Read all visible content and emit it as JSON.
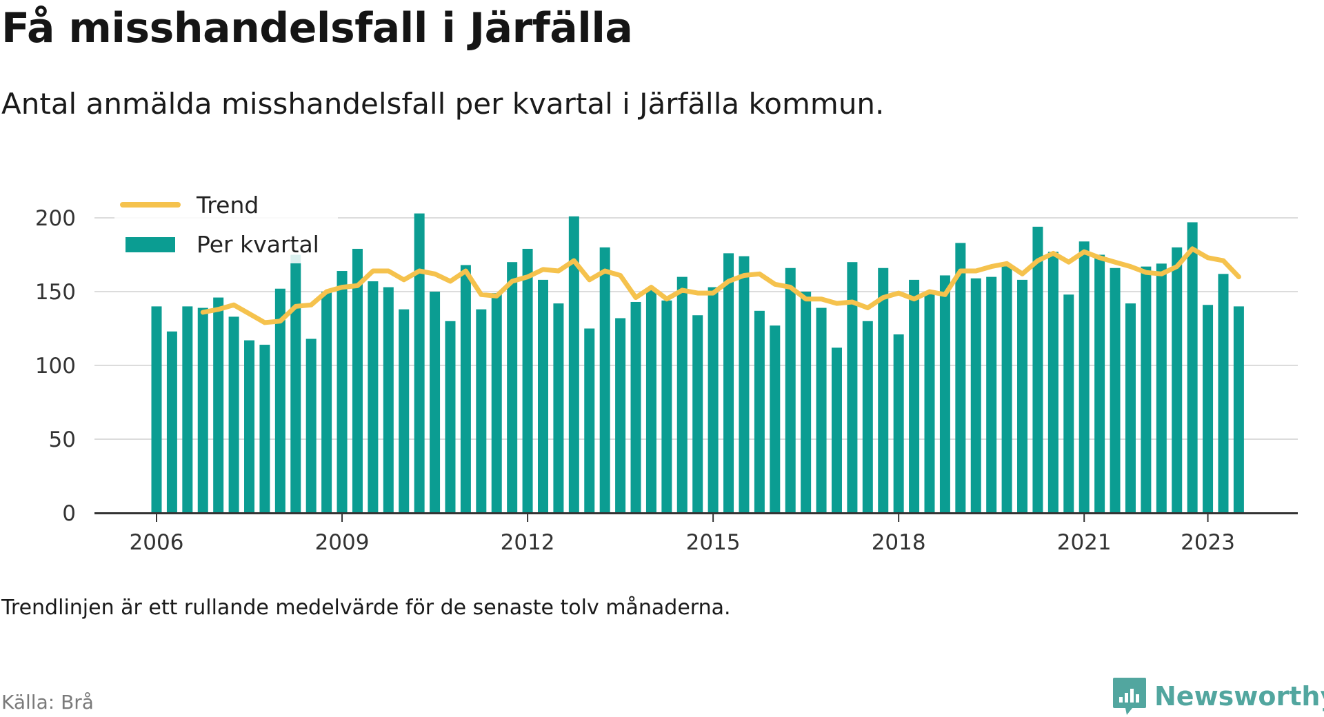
{
  "title": "Få misshandelsfall i Järfälla",
  "subtitle": "Antal anmälda misshandelsfall per kvartal i Järfälla kommun.",
  "note": "Trendlinjen är ett rullande medelvärde för de senaste tolv månaderna.",
  "source": "Källa: Brå",
  "brand": "Newsworthy",
  "colors": {
    "bars": "#0b9d92",
    "trend": "#f5c24d",
    "grid": "#dcdcdc",
    "axis": "#333333"
  },
  "chart_data": {
    "type": "bar",
    "title": "",
    "xlabel": "",
    "ylabel": "",
    "ylim": [
      0,
      200
    ],
    "yticks": [
      0,
      50,
      100,
      150,
      200
    ],
    "xticks": [
      "2006",
      "2009",
      "2012",
      "2015",
      "2018",
      "2021",
      "2023"
    ],
    "grid": true,
    "legend_position": "top-left",
    "categories": [
      "2006 Q1",
      "2006 Q2",
      "2006 Q3",
      "2006 Q4",
      "2007 Q1",
      "2007 Q2",
      "2007 Q3",
      "2007 Q4",
      "2008 Q1",
      "2008 Q2",
      "2008 Q3",
      "2008 Q4",
      "2009 Q1",
      "2009 Q2",
      "2009 Q3",
      "2009 Q4",
      "2010 Q1",
      "2010 Q2",
      "2010 Q3",
      "2010 Q4",
      "2011 Q1",
      "2011 Q2",
      "2011 Q3",
      "2011 Q4",
      "2012 Q1",
      "2012 Q2",
      "2012 Q3",
      "2012 Q4",
      "2013 Q1",
      "2013 Q2",
      "2013 Q3",
      "2013 Q4",
      "2014 Q1",
      "2014 Q2",
      "2014 Q3",
      "2014 Q4",
      "2015 Q1",
      "2015 Q2",
      "2015 Q3",
      "2015 Q4",
      "2016 Q1",
      "2016 Q2",
      "2016 Q3",
      "2016 Q4",
      "2017 Q1",
      "2017 Q2",
      "2017 Q3",
      "2017 Q4",
      "2018 Q1",
      "2018 Q2",
      "2018 Q3",
      "2018 Q4",
      "2019 Q1",
      "2019 Q2",
      "2019 Q3",
      "2019 Q4",
      "2020 Q1",
      "2020 Q2",
      "2020 Q3",
      "2020 Q4",
      "2021 Q1",
      "2021 Q2",
      "2021 Q3",
      "2021 Q4",
      "2022 Q1",
      "2022 Q2",
      "2022 Q3",
      "2022 Q4",
      "2023 Q1",
      "2023 Q2",
      "2023 Q3"
    ],
    "series": [
      {
        "name": "Per kvartal",
        "kind": "bar",
        "values": [
          140,
          123,
          140,
          139,
          146,
          133,
          117,
          114,
          152,
          175,
          118,
          150,
          164,
          179,
          157,
          153,
          138,
          203,
          150,
          130,
          168,
          138,
          149,
          170,
          179,
          158,
          142,
          201,
          125,
          180,
          132,
          143,
          151,
          144,
          160,
          134,
          153,
          176,
          174,
          137,
          127,
          166,
          150,
          139,
          112,
          170,
          130,
          166,
          121,
          158,
          150,
          161,
          183,
          159,
          160,
          168,
          158,
          194,
          177,
          148,
          184,
          175,
          166,
          142,
          167,
          169,
          180,
          197,
          141,
          162,
          140
        ]
      },
      {
        "name": "Trend",
        "kind": "line",
        "values": [
          null,
          null,
          null,
          136,
          138,
          141,
          135,
          129,
          130,
          140,
          141,
          150,
          153,
          154,
          164,
          164,
          158,
          164,
          162,
          157,
          164,
          148,
          147,
          157,
          160,
          165,
          164,
          171,
          158,
          164,
          161,
          146,
          153,
          145,
          151,
          149,
          149,
          157,
          161,
          162,
          155,
          153,
          145,
          145,
          142,
          143,
          139,
          146,
          149,
          145,
          150,
          148,
          164,
          164,
          167,
          169,
          162,
          171,
          176,
          170,
          177,
          173,
          170,
          167,
          163,
          162,
          167,
          179,
          173,
          171,
          160
        ]
      }
    ]
  }
}
